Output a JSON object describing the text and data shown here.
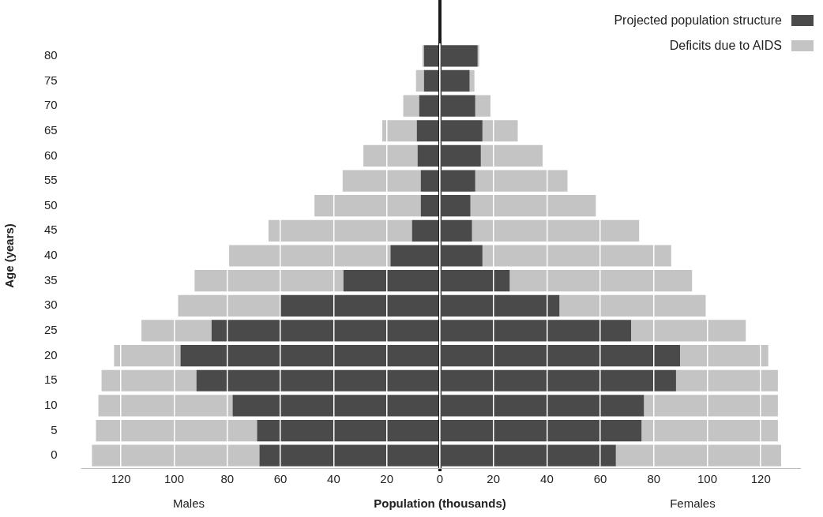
{
  "chart_data": [
    {
      "type": "bar",
      "orientation": "horizontal",
      "stacked": true,
      "ylabel": "Age (years)",
      "xlabel": "Population (thousands)",
      "annotations": [
        "Males"
      ],
      "categories": [
        "80",
        "75",
        "70",
        "65",
        "60",
        "55",
        "50",
        "45",
        "40",
        "35",
        "30",
        "25",
        "20",
        "15",
        "10",
        "5",
        "0"
      ],
      "series": [
        {
          "color": "#4a4a4a",
          "values": [
            6,
            6,
            7.8,
            8.7,
            8.4,
            7.2,
            7.2,
            10.5,
            18.6,
            36.3,
            60,
            85.9,
            97.6,
            91.6,
            78,
            68.8,
            67.9
          ]
        },
        {
          "color": "#c4c4c4",
          "values": [
            0.6,
            3,
            6,
            13,
            20.4,
            29.4,
            40,
            54,
            60.7,
            56,
            38.5,
            26.4,
            25,
            35.7,
            50.5,
            60.6,
            63
          ]
        }
      ],
      "xlim": [
        135,
        0
      ],
      "xticks": [
        120,
        100,
        80,
        60,
        40,
        20,
        {
          "value": 0,
          "label": null
        }
      ],
      "grid": "x",
      "ref_lines": [
        {
          "axis": "x",
          "value": 0,
          "color": "#1a1a1a"
        }
      ]
    },
    {
      "type": "bar",
      "orientation": "horizontal",
      "stacked": true,
      "annotations": [
        "Females"
      ],
      "categories": [
        "80",
        "75",
        "70",
        "65",
        "60",
        "55",
        "50",
        "45",
        "40",
        "35",
        "30",
        "25",
        "20",
        "15",
        "10",
        "5",
        "0"
      ],
      "series": [
        {
          "name": "Projected population structure",
          "color": "#4a4a4a",
          "values": [
            14.1,
            11.1,
            13.2,
            15.9,
            15.3,
            13.2,
            11.4,
            12,
            15.9,
            26.1,
            44.7,
            71.5,
            89.8,
            88.3,
            76.3,
            75.4,
            65.8
          ]
        },
        {
          "name": "Deficits due to AIDS",
          "color": "#c4c4c4",
          "values": [
            0.6,
            1.8,
            5.7,
            13.2,
            23.1,
            34.5,
            46.9,
            62.5,
            70.6,
            68.2,
            54.7,
            42.9,
            33,
            38.1,
            50.1,
            51,
            61.8
          ]
        }
      ],
      "xlim": [
        0,
        135
      ],
      "xticks": [
        0,
        20,
        40,
        60,
        80,
        100,
        120
      ],
      "grid": "x",
      "legend": "top right",
      "tick_labels": "x"
    }
  ]
}
